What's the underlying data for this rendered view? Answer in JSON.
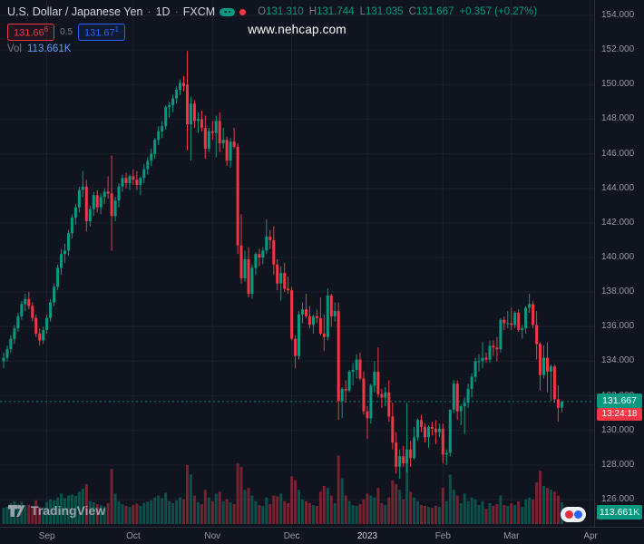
{
  "colors": {
    "background": "#0f141f",
    "pane_border": "#2a2e39",
    "grid": "rgba(255,255,255,0.055)",
    "text_primary": "#d1d4dc",
    "text_secondary": "#787b86",
    "axis_text": "#9598a1",
    "up": "#089981",
    "down": "#f23645",
    "buy": "#2962ff",
    "vol_value": "#5b9cf6",
    "badge_price_bg": "#089981",
    "badge_countdown_bg": "#f23645",
    "badge_volume_bg": "#089981",
    "watermark": "#ffffff",
    "logo": "#9ca0a8"
  },
  "header": {
    "symbol": "U.S. Dollar / Japanese Yen",
    "sep": "·",
    "interval": "1D",
    "exchange": "FXCM",
    "ohlc": {
      "o_label": "O",
      "o": "131.310",
      "h_label": "H",
      "h": "131.744",
      "l_label": "L",
      "l": "131.035",
      "c_label": "C",
      "c": "131.667",
      "change": "+0.357 (+0.27%)"
    },
    "prices": {
      "sell_main": "131.66",
      "sell_sup": "6",
      "spread": "0.5",
      "buy_main": "131.67",
      "buy_sup": "1"
    },
    "vol_label": "Vol",
    "vol_value": "113.661K",
    "watermark": "www.nehcap.com"
  },
  "axes": {
    "price_badge": "131.667",
    "countdown": "13:24:18",
    "volume_badge": "113.661K"
  },
  "footer": {
    "brand": "TradingView"
  },
  "chart_data": {
    "type": "candlestick",
    "symbol": "USDJPY",
    "interval": "1D",
    "title": "U.S. Dollar / Japanese Yen · 1D · FXCM",
    "ylim": [
      125.3,
      154.8
    ],
    "grid": true,
    "volume_unit": "K",
    "last_close": 131.667,
    "price_ticks": [
      "154.000",
      "152.000",
      "150.000",
      "148.000",
      "146.000",
      "144.000",
      "142.000",
      "140.000",
      "138.000",
      "136.000",
      "134.000",
      "132.000",
      "130.000",
      "128.000",
      "126.000"
    ],
    "time_ticks": [
      {
        "label": "Sep",
        "index": 12
      },
      {
        "label": "Oct",
        "index": 36
      },
      {
        "label": "Nov",
        "index": 58
      },
      {
        "label": "Dec",
        "index": 80
      },
      {
        "label": "2023",
        "index": 101,
        "major": true
      },
      {
        "label": "Feb",
        "index": 122
      },
      {
        "label": "Mar",
        "index": 141
      },
      {
        "label": "Apr",
        "index": 163
      }
    ],
    "candles": [
      [
        134.0,
        134.5,
        133.6,
        134.2,
        85
      ],
      [
        134.2,
        134.9,
        134.0,
        134.7,
        92
      ],
      [
        134.7,
        135.5,
        134.5,
        135.3,
        110
      ],
      [
        135.3,
        136.1,
        135.0,
        135.9,
        120
      ],
      [
        135.9,
        136.8,
        135.7,
        136.6,
        105
      ],
      [
        136.6,
        137.5,
        136.4,
        137.3,
        118
      ],
      [
        137.3,
        137.9,
        136.9,
        137.6,
        98
      ],
      [
        137.6,
        138.0,
        137.0,
        137.2,
        102
      ],
      [
        137.2,
        137.4,
        136.3,
        136.5,
        95
      ],
      [
        136.5,
        136.7,
        135.4,
        135.6,
        125
      ],
      [
        135.6,
        135.9,
        134.9,
        135.2,
        90
      ],
      [
        135.2,
        136.0,
        135.0,
        135.8,
        88
      ],
      [
        135.8,
        136.7,
        135.6,
        136.5,
        115
      ],
      [
        136.5,
        137.6,
        136.3,
        137.4,
        130
      ],
      [
        137.4,
        138.5,
        137.2,
        138.3,
        125
      ],
      [
        138.3,
        139.6,
        138.1,
        139.4,
        140
      ],
      [
        139.4,
        140.5,
        139.0,
        140.2,
        160
      ],
      [
        140.2,
        140.8,
        139.7,
        140.4,
        135
      ],
      [
        140.4,
        141.6,
        140.1,
        141.4,
        150
      ],
      [
        141.4,
        142.5,
        141.1,
        142.3,
        155
      ],
      [
        142.3,
        143.1,
        141.9,
        142.9,
        148
      ],
      [
        142.9,
        144.1,
        142.6,
        143.9,
        170
      ],
      [
        143.9,
        145.0,
        143.5,
        144.1,
        185
      ],
      [
        144.1,
        144.5,
        141.5,
        142.1,
        210
      ],
      [
        142.1,
        143.0,
        141.8,
        142.8,
        120
      ],
      [
        142.8,
        143.8,
        142.4,
        143.6,
        115
      ],
      [
        143.6,
        143.9,
        142.6,
        142.9,
        105
      ],
      [
        142.9,
        143.7,
        142.5,
        143.5,
        98
      ],
      [
        143.5,
        144.0,
        143.1,
        143.8,
        92
      ],
      [
        143.8,
        144.7,
        143.4,
        143.7,
        110
      ],
      [
        143.7,
        145.9,
        140.4,
        142.4,
        290
      ],
      [
        142.4,
        143.5,
        142.1,
        143.3,
        160
      ],
      [
        143.3,
        144.3,
        142.9,
        144.1,
        120
      ],
      [
        144.1,
        144.8,
        143.8,
        144.6,
        105
      ],
      [
        144.6,
        144.9,
        144.0,
        144.3,
        95
      ],
      [
        144.3,
        144.8,
        143.9,
        144.7,
        90
      ],
      [
        144.7,
        145.1,
        144.2,
        144.5,
        100
      ],
      [
        144.5,
        145.0,
        143.9,
        144.2,
        108
      ],
      [
        144.2,
        144.7,
        143.6,
        144.6,
        95
      ],
      [
        144.6,
        145.4,
        144.3,
        145.1,
        112
      ],
      [
        145.1,
        145.8,
        144.8,
        145.6,
        118
      ],
      [
        145.6,
        146.3,
        145.3,
        146.0,
        125
      ],
      [
        146.0,
        146.9,
        145.7,
        146.8,
        140
      ],
      [
        146.8,
        147.6,
        146.5,
        147.3,
        150
      ],
      [
        147.3,
        147.9,
        146.9,
        147.6,
        135
      ],
      [
        147.6,
        148.8,
        147.4,
        148.7,
        165
      ],
      [
        148.7,
        149.0,
        148.1,
        148.8,
        120
      ],
      [
        148.8,
        149.4,
        148.4,
        149.2,
        110
      ],
      [
        149.2,
        149.9,
        148.9,
        149.7,
        125
      ],
      [
        149.7,
        150.3,
        149.4,
        150.1,
        140
      ],
      [
        150.1,
        150.5,
        149.6,
        149.9,
        130
      ],
      [
        150.0,
        151.94,
        146.2,
        147.7,
        310
      ],
      [
        147.7,
        149.3,
        145.6,
        148.9,
        260
      ],
      [
        148.9,
        149.1,
        147.5,
        147.9,
        150
      ],
      [
        147.9,
        148.4,
        147.2,
        148.0,
        115
      ],
      [
        148.0,
        148.5,
        147.3,
        147.5,
        105
      ],
      [
        147.5,
        148.2,
        145.7,
        146.3,
        180
      ],
      [
        146.3,
        147.5,
        146.1,
        147.3,
        140
      ],
      [
        147.3,
        147.9,
        146.8,
        147.2,
        120
      ],
      [
        147.2,
        148.2,
        145.8,
        147.9,
        160
      ],
      [
        147.9,
        148.4,
        146.1,
        146.6,
        170
      ],
      [
        146.6,
        147.5,
        146.3,
        146.8,
        120
      ],
      [
        146.8,
        147.0,
        145.3,
        145.6,
        130
      ],
      [
        145.6,
        146.9,
        145.2,
        146.7,
        115
      ],
      [
        146.7,
        147.5,
        146.3,
        146.4,
        105
      ],
      [
        146.4,
        146.6,
        140.2,
        140.7,
        320
      ],
      [
        140.7,
        142.5,
        138.5,
        138.8,
        300
      ],
      [
        138.8,
        140.4,
        138.6,
        139.9,
        180
      ],
      [
        139.9,
        140.6,
        137.7,
        137.9,
        190
      ],
      [
        137.9,
        139.6,
        137.6,
        139.4,
        150
      ],
      [
        139.4,
        140.3,
        139.0,
        140.2,
        120
      ],
      [
        140.2,
        140.5,
        139.5,
        140.0,
        100
      ],
      [
        140.0,
        140.6,
        139.6,
        140.4,
        95
      ],
      [
        140.4,
        142.2,
        140.2,
        141.2,
        140
      ],
      [
        141.2,
        141.6,
        140.5,
        141.0,
        105
      ],
      [
        141.0,
        141.8,
        139.0,
        139.6,
        150
      ],
      [
        139.6,
        139.9,
        138.1,
        138.5,
        145
      ],
      [
        138.5,
        139.5,
        137.5,
        139.1,
        160
      ],
      [
        139.1,
        139.7,
        138.0,
        138.2,
        120
      ],
      [
        138.2,
        138.9,
        137.9,
        138.1,
        110
      ],
      [
        138.1,
        138.3,
        135.2,
        135.3,
        250
      ],
      [
        135.3,
        135.5,
        133.6,
        134.3,
        230
      ],
      [
        134.3,
        136.9,
        134.1,
        136.7,
        180
      ],
      [
        136.7,
        137.4,
        136.2,
        137.0,
        130
      ],
      [
        137.0,
        137.9,
        136.5,
        136.6,
        120
      ],
      [
        136.6,
        137.2,
        135.9,
        136.1,
        110
      ],
      [
        136.1,
        136.7,
        135.6,
        136.6,
        100
      ],
      [
        136.6,
        137.0,
        136.2,
        136.5,
        95
      ],
      [
        136.5,
        137.7,
        135.5,
        135.6,
        170
      ],
      [
        135.6,
        136.7,
        134.6,
        135.4,
        200
      ],
      [
        135.4,
        138.2,
        135.2,
        137.8,
        190
      ],
      [
        137.8,
        137.9,
        136.0,
        136.6,
        150
      ],
      [
        136.6,
        137.4,
        136.3,
        136.9,
        110
      ],
      [
        136.9,
        137.4,
        130.6,
        131.7,
        360
      ],
      [
        131.7,
        132.5,
        130.7,
        132.4,
        240
      ],
      [
        132.4,
        132.9,
        131.6,
        132.3,
        150
      ],
      [
        132.3,
        133.5,
        132.2,
        133.4,
        120
      ],
      [
        133.4,
        133.9,
        132.6,
        133.5,
        100
      ],
      [
        133.5,
        134.4,
        133.0,
        134.1,
        95
      ],
      [
        134.1,
        134.5,
        132.9,
        133.0,
        105
      ],
      [
        133.0,
        133.4,
        130.9,
        131.1,
        130
      ],
      [
        131.1,
        131.4,
        129.5,
        130.7,
        160
      ],
      [
        130.7,
        132.7,
        130.4,
        132.6,
        150
      ],
      [
        132.6,
        134.0,
        132.2,
        133.4,
        140
      ],
      [
        133.4,
        134.8,
        131.9,
        132.1,
        190
      ],
      [
        132.1,
        132.4,
        131.3,
        131.9,
        110
      ],
      [
        131.9,
        132.5,
        131.4,
        132.2,
        100
      ],
      [
        132.2,
        132.9,
        130.5,
        130.8,
        140
      ],
      [
        130.8,
        131.6,
        128.9,
        129.3,
        230
      ],
      [
        129.3,
        129.9,
        127.5,
        127.9,
        210
      ],
      [
        127.9,
        128.9,
        127.2,
        128.5,
        180
      ],
      [
        128.5,
        129.1,
        127.9,
        128.1,
        130
      ],
      [
        128.1,
        131.6,
        127.6,
        128.9,
        340
      ],
      [
        128.9,
        129.4,
        127.9,
        128.4,
        170
      ],
      [
        128.4,
        130.2,
        128.3,
        129.6,
        140
      ],
      [
        129.6,
        130.7,
        129.4,
        130.6,
        120
      ],
      [
        130.6,
        130.9,
        129.9,
        130.2,
        100
      ],
      [
        130.2,
        130.4,
        129.3,
        129.6,
        95
      ],
      [
        129.6,
        130.3,
        129.0,
        130.2,
        90
      ],
      [
        130.2,
        130.5,
        129.7,
        130.1,
        85
      ],
      [
        130.1,
        130.6,
        129.2,
        129.9,
        95
      ],
      [
        129.9,
        130.4,
        129.6,
        130.1,
        90
      ],
      [
        130.1,
        130.4,
        128.1,
        128.6,
        190
      ],
      [
        128.6,
        128.9,
        128.0,
        128.7,
        120
      ],
      [
        128.7,
        131.2,
        128.5,
        131.2,
        260
      ],
      [
        131.2,
        132.9,
        131.0,
        132.7,
        180
      ],
      [
        132.7,
        132.9,
        130.6,
        131.1,
        150
      ],
      [
        131.1,
        131.5,
        130.3,
        131.4,
        110
      ],
      [
        131.4,
        131.9,
        129.8,
        131.6,
        160
      ],
      [
        131.6,
        132.7,
        131.3,
        132.4,
        120
      ],
      [
        132.4,
        133.3,
        131.9,
        133.1,
        140
      ],
      [
        133.1,
        134.2,
        132.8,
        134.0,
        130
      ],
      [
        134.0,
        134.4,
        133.4,
        134.0,
        100
      ],
      [
        134.0,
        135.1,
        133.6,
        134.2,
        120
      ],
      [
        134.2,
        134.5,
        133.9,
        134.1,
        80
      ],
      [
        134.1,
        135.2,
        133.9,
        134.9,
        110
      ],
      [
        134.9,
        135.2,
        134.3,
        134.8,
        95
      ],
      [
        134.8,
        135.4,
        134.0,
        134.7,
        105
      ],
      [
        134.7,
        136.5,
        134.5,
        136.4,
        150
      ],
      [
        136.4,
        136.6,
        135.8,
        136.2,
        100
      ],
      [
        136.2,
        136.9,
        135.9,
        136.2,
        95
      ],
      [
        136.2,
        137.1,
        135.8,
        136.1,
        110
      ],
      [
        136.1,
        136.9,
        135.9,
        136.8,
        100
      ],
      [
        136.8,
        137.0,
        135.7,
        135.8,
        120
      ],
      [
        135.8,
        136.1,
        135.3,
        135.9,
        90
      ],
      [
        135.9,
        137.2,
        135.6,
        137.1,
        130
      ],
      [
        137.1,
        137.9,
        136.8,
        137.3,
        140
      ],
      [
        137.3,
        137.5,
        135.9,
        136.1,
        130
      ],
      [
        136.1,
        136.9,
        134.1,
        135.0,
        220
      ],
      [
        135.0,
        135.1,
        132.3,
        133.2,
        280
      ],
      [
        133.2,
        134.9,
        133.0,
        134.2,
        200
      ],
      [
        134.2,
        135.1,
        132.2,
        133.4,
        190
      ],
      [
        133.4,
        133.8,
        131.7,
        133.7,
        180
      ],
      [
        133.7,
        133.8,
        131.6,
        131.8,
        170
      ],
      [
        131.8,
        132.6,
        130.5,
        131.3,
        150
      ],
      [
        131.31,
        131.744,
        131.035,
        131.667,
        113.661
      ]
    ]
  }
}
